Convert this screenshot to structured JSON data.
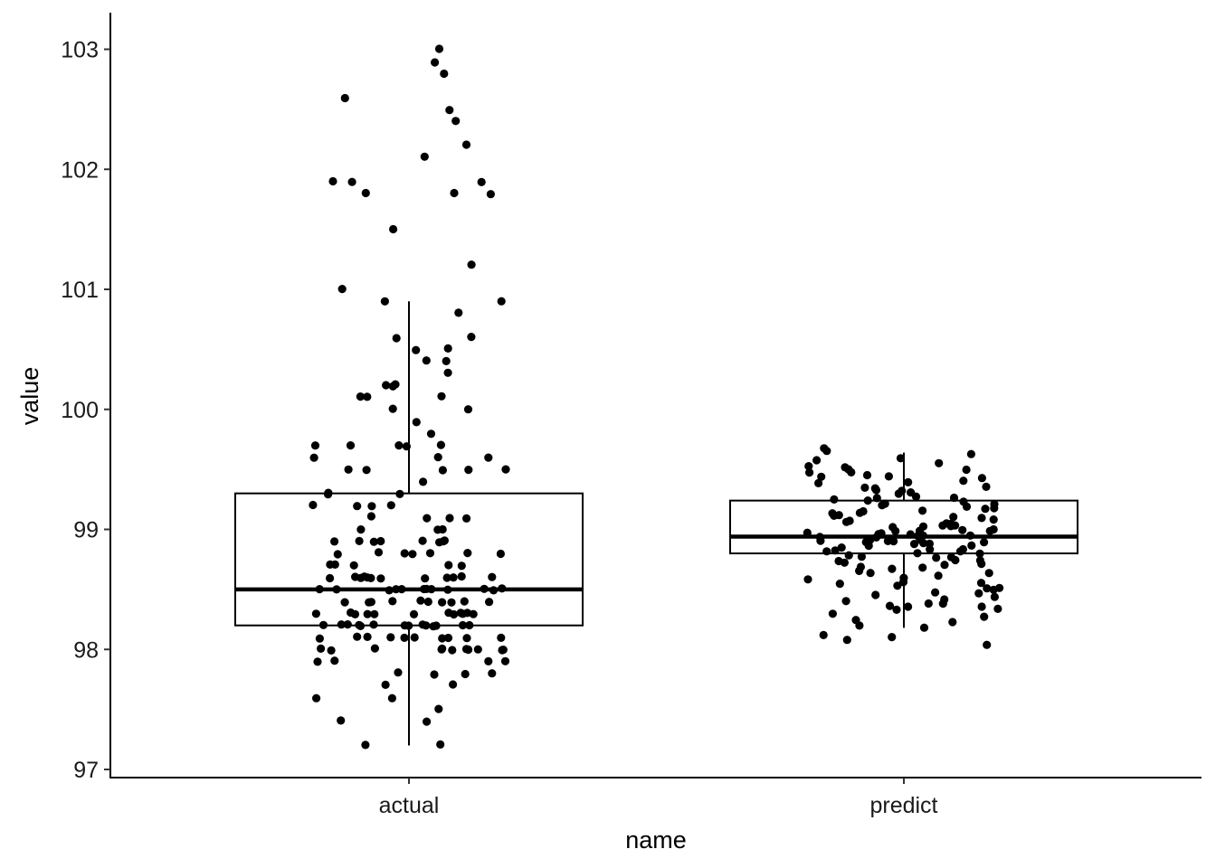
{
  "chart_data": {
    "type": "box",
    "xlabel": "name",
    "ylabel": "value",
    "ylim": [
      96.97,
      103.3
    ],
    "yticks": [
      97,
      98,
      99,
      100,
      101,
      102,
      103
    ],
    "grid": false,
    "categories": [
      "actual",
      "predict"
    ],
    "boxes": [
      {
        "category": "actual",
        "whisker_low": 97.2,
        "q1": 98.2,
        "median": 98.5,
        "q3": 99.3,
        "whisker_high": 100.9
      },
      {
        "category": "predict",
        "whisker_low": 98.18,
        "q1": 98.8,
        "median": 98.94,
        "q3": 99.24,
        "whisker_high": 99.64
      }
    ],
    "points": [
      {
        "category": "actual",
        "values": [
          103.0,
          102.9,
          102.8,
          102.6,
          102.5,
          102.4,
          102.2,
          102.1,
          101.9,
          101.9,
          101.9,
          101.8,
          101.8,
          101.8,
          101.5,
          101.2,
          101.0,
          100.9,
          100.9,
          100.8,
          100.6,
          100.6,
          100.5,
          100.5,
          100.4,
          100.4,
          100.3,
          100.2,
          100.2,
          100.2,
          100.1,
          100.1,
          100.1,
          100.0,
          100.0,
          99.9,
          99.8,
          99.7,
          99.7,
          99.7,
          99.7,
          99.7,
          99.6,
          99.6,
          99.6,
          99.5,
          99.5,
          99.5,
          99.5,
          99.5,
          99.4,
          99.3,
          99.3,
          99.3,
          99.2,
          99.2,
          99.2,
          99.2,
          99.1,
          99.1,
          99.1,
          99.1,
          99.0,
          99.0,
          99.0,
          98.9,
          98.9,
          98.9,
          98.9,
          98.9,
          98.9,
          98.9,
          98.9,
          98.8,
          98.8,
          98.8,
          98.8,
          98.8,
          98.8,
          98.8,
          98.7,
          98.7,
          98.7,
          98.7,
          98.7,
          98.6,
          98.6,
          98.6,
          98.6,
          98.6,
          98.6,
          98.6,
          98.6,
          98.6,
          98.6,
          98.6,
          98.6,
          98.5,
          98.5,
          98.5,
          98.5,
          98.5,
          98.5,
          98.5,
          98.5,
          98.5,
          98.5,
          98.5,
          98.5,
          98.4,
          98.4,
          98.4,
          98.4,
          98.4,
          98.4,
          98.4,
          98.4,
          98.4,
          98.4,
          98.3,
          98.3,
          98.3,
          98.3,
          98.3,
          98.3,
          98.3,
          98.3,
          98.3,
          98.3,
          98.3,
          98.3,
          98.2,
          98.2,
          98.2,
          98.2,
          98.2,
          98.2,
          98.2,
          98.2,
          98.2,
          98.2,
          98.2,
          98.2,
          98.2,
          98.2,
          98.1,
          98.1,
          98.1,
          98.1,
          98.1,
          98.1,
          98.1,
          98.1,
          98.1,
          98.1,
          98.0,
          98.0,
          98.0,
          98.0,
          98.0,
          98.0,
          98.0,
          98.0,
          98.0,
          98.0,
          98.0,
          97.9,
          97.9,
          97.9,
          97.9,
          97.8,
          97.8,
          97.8,
          97.8,
          97.7,
          97.7,
          97.6,
          97.6,
          97.5,
          97.4,
          97.4,
          97.2,
          97.2
        ]
      },
      {
        "category": "predict",
        "values": [
          99.67,
          99.65,
          99.62,
          99.6,
          99.58,
          99.55,
          99.52,
          99.52,
          99.5,
          99.5,
          99.48,
          99.47,
          99.45,
          99.44,
          99.43,
          99.42,
          99.4,
          99.4,
          99.38,
          99.36,
          99.35,
          99.34,
          99.33,
          99.32,
          99.3,
          99.3,
          99.28,
          99.27,
          99.26,
          99.25,
          99.24,
          99.23,
          99.22,
          99.21,
          99.2,
          99.19,
          99.18,
          99.17,
          99.16,
          99.15,
          99.14,
          99.13,
          99.12,
          99.11,
          99.1,
          99.09,
          99.08,
          99.07,
          99.06,
          99.05,
          99.05,
          99.04,
          99.03,
          99.02,
          99.02,
          99.01,
          99.0,
          99.0,
          98.99,
          98.98,
          98.98,
          98.97,
          98.96,
          98.96,
          98.95,
          98.95,
          98.94,
          98.94,
          98.93,
          98.93,
          98.92,
          98.92,
          98.91,
          98.91,
          98.9,
          98.9,
          98.89,
          98.88,
          98.88,
          98.87,
          98.86,
          98.86,
          98.85,
          98.84,
          98.84,
          98.83,
          98.82,
          98.81,
          98.8,
          98.8,
          98.79,
          98.78,
          98.77,
          98.76,
          98.75,
          98.74,
          98.73,
          98.72,
          98.71,
          98.7,
          98.69,
          98.68,
          98.67,
          98.65,
          98.64,
          98.63,
          98.62,
          98.6,
          98.58,
          98.57,
          98.56,
          98.55,
          98.53,
          98.52,
          98.5,
          98.49,
          98.48,
          98.47,
          98.45,
          98.44,
          98.42,
          98.4,
          98.39,
          98.38,
          98.37,
          98.36,
          98.35,
          98.34,
          98.33,
          98.3,
          98.28,
          98.25,
          98.22,
          98.2,
          98.18,
          98.12,
          98.1,
          98.08,
          98.03
        ]
      }
    ]
  }
}
